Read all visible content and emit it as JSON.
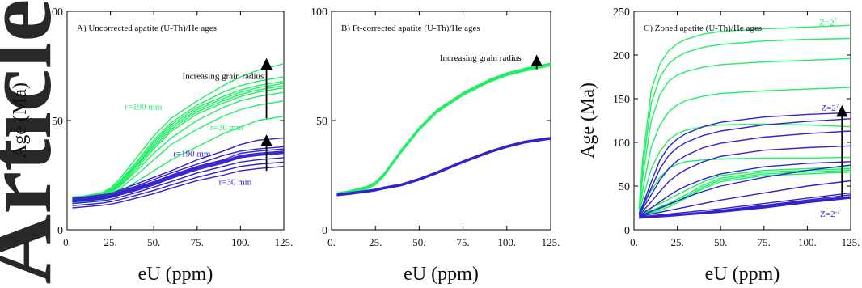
{
  "watermark": {
    "text": "Article",
    "color": "#cccccc"
  },
  "colors": {
    "green": "#22ee66",
    "blue": "#3322cc",
    "arrow": "#000000",
    "axis": "#000000"
  },
  "chart_data": [
    {
      "type": "line",
      "title": "A) Uncorrected apatite (U-Th)/He ages",
      "xlabel": "eU (ppm)",
      "ylabel": "Age (Ma)",
      "xlim": [
        0,
        125
      ],
      "ylim": [
        0,
        100
      ],
      "xticks": [
        0,
        25,
        50,
        75,
        100,
        125
      ],
      "xtick_labels": [
        "0.",
        "25.",
        "50.",
        "75.",
        "100.",
        "125."
      ],
      "yticks": [
        0,
        50,
        100
      ],
      "ytick_labels": [
        "0",
        "50",
        "100"
      ],
      "x": [
        3,
        10,
        20,
        25,
        30,
        40,
        50,
        60,
        75,
        90,
        100,
        110,
        125
      ],
      "series": [
        {
          "color": "green",
          "values": [
            15,
            15.5,
            17,
            19,
            23,
            33,
            43,
            51,
            59,
            66,
            70,
            73,
            76
          ]
        },
        {
          "color": "green",
          "values": [
            14.5,
            15,
            16.5,
            18.5,
            22,
            31,
            41,
            49,
            57,
            63,
            66,
            68,
            70
          ]
        },
        {
          "color": "green",
          "values": [
            14,
            14.5,
            16,
            18,
            21.5,
            30,
            40,
            48,
            56,
            61,
            64,
            66,
            68
          ]
        },
        {
          "color": "green",
          "values": [
            13.8,
            14.3,
            15.8,
            17.7,
            21,
            29.5,
            39,
            47,
            55,
            60,
            63,
            65,
            67
          ]
        },
        {
          "color": "green",
          "values": [
            13.5,
            14,
            15.5,
            17.5,
            20.5,
            29,
            38,
            46,
            54,
            59,
            62,
            64,
            66
          ]
        },
        {
          "color": "green",
          "values": [
            13.2,
            13.8,
            15.2,
            17,
            20,
            28,
            37,
            45,
            53,
            58,
            61,
            63,
            65
          ]
        },
        {
          "color": "green",
          "values": [
            13,
            13.5,
            15,
            16.7,
            19.5,
            27,
            35,
            42,
            50,
            56,
            59,
            61,
            63
          ]
        },
        {
          "color": "green",
          "values": [
            12.5,
            13,
            14.5,
            16,
            18.5,
            25,
            32,
            39,
            46,
            52,
            55,
            57,
            59
          ]
        },
        {
          "color": "green",
          "values": [
            12,
            12.5,
            13.5,
            15,
            17,
            22,
            27,
            32,
            38,
            44,
            47,
            50,
            52
          ]
        },
        {
          "color": "blue",
          "values": [
            14.5,
            15,
            16,
            16.5,
            18,
            21,
            24,
            27,
            32,
            36,
            39,
            41,
            42
          ]
        },
        {
          "color": "blue",
          "values": [
            14,
            14.5,
            15.5,
            16,
            17.5,
            20,
            23,
            26,
            30,
            34,
            36,
            37,
            38
          ]
        },
        {
          "color": "blue",
          "values": [
            13.5,
            14,
            15,
            15.5,
            17,
            19.5,
            22,
            25,
            29,
            32,
            35,
            36,
            37
          ]
        },
        {
          "color": "blue",
          "values": [
            13.2,
            13.7,
            14.6,
            15.2,
            16.5,
            19,
            21.5,
            24.5,
            28.5,
            31.5,
            34,
            35,
            36
          ]
        },
        {
          "color": "blue",
          "values": [
            13,
            13.5,
            14.3,
            15,
            16.2,
            18.5,
            21,
            24,
            28,
            31,
            33.5,
            34.5,
            35.5
          ]
        },
        {
          "color": "blue",
          "values": [
            12.8,
            13.2,
            14,
            14.7,
            15.8,
            18,
            20.5,
            23.5,
            27.5,
            30.5,
            33,
            34,
            35
          ]
        },
        {
          "color": "blue",
          "values": [
            12,
            12.5,
            13.2,
            13.8,
            14.8,
            17,
            19.5,
            22,
            26,
            29,
            31,
            32,
            33
          ]
        },
        {
          "color": "blue",
          "values": [
            11,
            11.5,
            12.2,
            12.8,
            13.7,
            15.8,
            18,
            20.5,
            24,
            27,
            29,
            30,
            31
          ]
        },
        {
          "color": "blue",
          "values": [
            10,
            10.5,
            11.2,
            11.7,
            12.5,
            14.5,
            16.5,
            19,
            22.5,
            25,
            27,
            28,
            29
          ]
        }
      ],
      "annotations": [
        {
          "text": "Increasing grain radius",
          "x": 90,
          "y": 69,
          "color": "arrow",
          "anchor": "middle"
        },
        {
          "text": "r=190 mm",
          "x": 44,
          "y": 55,
          "color": "green",
          "anchor": "middle"
        },
        {
          "text": "r=30 mm",
          "x": 92,
          "y": 45.5,
          "color": "green",
          "anchor": "middle"
        },
        {
          "text": "r=190 mm",
          "x": 72,
          "y": 33.5,
          "color": "blue",
          "anchor": "middle"
        },
        {
          "text": "r=30 mm",
          "x": 97,
          "y": 20.5,
          "color": "blue",
          "anchor": "middle"
        }
      ],
      "arrows": [
        {
          "x": 115,
          "y1": 51,
          "y2": 76
        },
        {
          "x": 115,
          "y1": 27,
          "y2": 41
        }
      ]
    },
    {
      "type": "line",
      "title": "B) Ft-corrected apatite (U-Th)/He ages",
      "xlabel": "eU (ppm)",
      "ylabel": "",
      "xlim": [
        0,
        125
      ],
      "ylim": [
        0,
        100
      ],
      "xticks": [
        0,
        25,
        50,
        75,
        100,
        125
      ],
      "xtick_labels": [
        "0.",
        "25.",
        "50.",
        "75.",
        "100.",
        "125."
      ],
      "yticks": [
        0,
        50,
        100
      ],
      "ytick_labels": [
        "0",
        "50",
        "100"
      ],
      "x": [
        3,
        10,
        20,
        25,
        30,
        40,
        50,
        60,
        75,
        90,
        100,
        110,
        125
      ],
      "series": [
        {
          "color": "green",
          "values": [
            16.8,
            17.8,
            19.8,
            21.8,
            25.8,
            36.8,
            46.8,
            54.8,
            62.8,
            68.8,
            71.8,
            73.8,
            76.3
          ]
        },
        {
          "color": "green",
          "values": [
            16.6,
            17.6,
            19.6,
            21.6,
            25.6,
            36.6,
            46.6,
            54.6,
            62.6,
            68.6,
            71.6,
            73.6,
            76.1
          ]
        },
        {
          "color": "green",
          "values": [
            16.4,
            17.4,
            19.4,
            21.4,
            25.4,
            36.4,
            46.4,
            54.4,
            62.4,
            68.4,
            71.4,
            73.4,
            75.9
          ]
        },
        {
          "color": "green",
          "values": [
            16.2,
            17.2,
            19.2,
            21.2,
            25.2,
            36.2,
            46.2,
            54.2,
            62.2,
            68.2,
            71.2,
            73.2,
            75.7
          ]
        },
        {
          "color": "green",
          "values": [
            16,
            17,
            19,
            21,
            25,
            36,
            46,
            54,
            62,
            68,
            71,
            73,
            75.5
          ]
        },
        {
          "color": "green",
          "values": [
            15.8,
            16.8,
            18.8,
            20.8,
            24.8,
            35.8,
            45.8,
            53.8,
            61.8,
            67.8,
            70.8,
            72.8,
            75.3
          ]
        },
        {
          "color": "green",
          "values": [
            15.6,
            16.6,
            18.6,
            20.6,
            24.6,
            35.6,
            45.6,
            53.6,
            61.6,
            67.6,
            70.6,
            72.6,
            75.1
          ]
        },
        {
          "color": "blue",
          "values": [
            16.4,
            17,
            18,
            18.6,
            19.5,
            21,
            23.5,
            26.5,
            31.5,
            36,
            38.5,
            40.5,
            42.3
          ]
        },
        {
          "color": "blue",
          "values": [
            16.2,
            16.8,
            17.8,
            18.4,
            19.3,
            20.8,
            23.3,
            26.3,
            31.3,
            35.8,
            38.3,
            40.3,
            42.1
          ]
        },
        {
          "color": "blue",
          "values": [
            16,
            16.6,
            17.6,
            18.2,
            19.1,
            20.6,
            23.1,
            26.1,
            31.1,
            35.6,
            38.1,
            40.1,
            41.9
          ]
        },
        {
          "color": "blue",
          "values": [
            15.8,
            16.4,
            17.4,
            18,
            18.9,
            20.4,
            22.9,
            25.9,
            30.9,
            35.4,
            37.9,
            39.9,
            41.7
          ]
        },
        {
          "color": "blue",
          "values": [
            15.6,
            16.2,
            17.2,
            17.8,
            18.7,
            20.2,
            22.7,
            25.7,
            30.7,
            35.2,
            37.7,
            39.7,
            41.5
          ]
        }
      ],
      "annotations": [
        {
          "text": "Increasing grain radius",
          "x": 85,
          "y": 77.5,
          "color": "arrow",
          "anchor": "middle"
        }
      ],
      "arrows": [
        {
          "x": 117,
          "y1": 73.5,
          "y2": 77.5
        }
      ]
    },
    {
      "type": "line",
      "title": "C) Zoned apatite (U-Th)/He ages",
      "xlabel": "eU (ppm)",
      "ylabel": "Age (Ma)",
      "xlim": [
        0,
        125
      ],
      "ylim": [
        0,
        250
      ],
      "xticks": [
        0,
        25,
        50,
        75,
        100,
        125
      ],
      "xtick_labels": [
        "0.",
        "25.",
        "50.",
        "75.",
        "100.",
        "125."
      ],
      "yticks": [
        0,
        50,
        100,
        150,
        200,
        250
      ],
      "ytick_labels": [
        "0",
        "50",
        "100",
        "150",
        "200",
        "250"
      ],
      "x": [
        3,
        5,
        10,
        15,
        20,
        25,
        30,
        40,
        50,
        75,
        100,
        125
      ],
      "series": [
        {
          "color": "green",
          "values": [
            25,
            80,
            160,
            190,
            205,
            213,
            218,
            224,
            227,
            230,
            232,
            234
          ]
        },
        {
          "color": "green",
          "values": [
            24,
            70,
            145,
            175,
            190,
            198,
            203,
            209,
            212,
            216,
            218,
            219
          ]
        },
        {
          "color": "green",
          "values": [
            23,
            60,
            125,
            155,
            170,
            177,
            181,
            186,
            189,
            192,
            194,
            196
          ]
        },
        {
          "color": "green",
          "values": [
            22,
            45,
            95,
            120,
            135,
            143,
            148,
            153,
            156,
            159,
            161,
            163
          ]
        },
        {
          "color": "green",
          "values": [
            21,
            35,
            70,
            90,
            103,
            110,
            114,
            118,
            120,
            121,
            120,
            118
          ]
        },
        {
          "color": "green",
          "values": [
            20,
            27,
            45,
            60,
            70,
            75,
            78,
            80,
            81,
            82,
            82,
            83
          ]
        },
        {
          "color": "green",
          "values": [
            18,
            20,
            25,
            30,
            35,
            40,
            45,
            55,
            62,
            68,
            70,
            72
          ]
        },
        {
          "color": "green",
          "values": [
            17,
            18.5,
            22,
            26,
            30,
            35,
            40,
            51,
            59,
            66,
            68,
            70
          ]
        },
        {
          "color": "green",
          "values": [
            16,
            17.5,
            20,
            24,
            28,
            33,
            38,
            49,
            57,
            64,
            66,
            68
          ]
        },
        {
          "color": "green",
          "values": [
            15.5,
            17,
            19,
            22,
            26,
            31,
            36,
            47,
            55,
            62,
            64,
            66
          ]
        },
        {
          "color": "blue",
          "values": [
            19,
            28,
            55,
            80,
            95,
            104,
            110,
            118,
            123,
            129,
            132,
            134
          ]
        },
        {
          "color": "blue",
          "values": [
            18.5,
            26,
            48,
            70,
            85,
            94,
            100,
            108,
            113,
            120,
            124,
            127
          ]
        },
        {
          "color": "blue",
          "values": [
            18,
            24,
            40,
            57,
            70,
            79,
            85,
            94,
            99,
            106,
            110,
            113
          ]
        },
        {
          "color": "blue",
          "values": [
            17,
            21,
            32,
            44,
            55,
            63,
            69,
            78,
            84,
            91,
            94,
            96
          ]
        },
        {
          "color": "blue",
          "values": [
            16,
            18.5,
            25,
            32,
            39,
            45,
            50,
            58,
            64,
            72,
            76,
            78
          ]
        },
        {
          "color": "blue",
          "values": [
            15.5,
            17,
            21,
            25,
            29,
            33,
            37,
            44,
            50,
            60,
            68,
            74
          ]
        },
        {
          "color": "blue",
          "values": [
            15,
            16,
            18,
            20,
            22,
            24,
            26,
            30,
            34,
            42,
            50,
            56
          ]
        },
        {
          "color": "blue",
          "values": [
            14.5,
            15,
            16,
            17,
            18,
            19,
            20,
            22,
            24,
            30,
            36,
            42
          ]
        },
        {
          "color": "blue",
          "values": [
            14,
            14.5,
            15.2,
            16,
            16.8,
            17.6,
            18.4,
            20.2,
            22.2,
            28,
            34,
            40
          ]
        },
        {
          "color": "blue",
          "values": [
            13.7,
            14.1,
            14.8,
            15.5,
            16.3,
            17.1,
            17.9,
            19.6,
            21.5,
            27,
            33,
            38
          ]
        },
        {
          "color": "blue",
          "values": [
            13.4,
            13.8,
            14.5,
            15.1,
            15.8,
            16.6,
            17.4,
            19,
            20.8,
            26,
            32,
            37
          ]
        },
        {
          "color": "blue",
          "values": [
            13.1,
            13.5,
            14.1,
            14.7,
            15.4,
            16.1,
            16.9,
            18.4,
            20.1,
            25,
            31,
            36
          ]
        }
      ],
      "annotations": [
        {
          "text": "Z=2^7",
          "x": 112,
          "y": 234,
          "color": "green",
          "anchor": "middle"
        },
        {
          "text": "Z=2^7",
          "x": 113,
          "y": 136,
          "color": "blue",
          "anchor": "middle"
        },
        {
          "text": "Z=2^-7",
          "x": 113,
          "y": 15,
          "color": "blue",
          "anchor": "middle"
        }
      ],
      "arrows": [
        {
          "x": 120,
          "y1": 37,
          "y2": 136
        }
      ]
    }
  ]
}
